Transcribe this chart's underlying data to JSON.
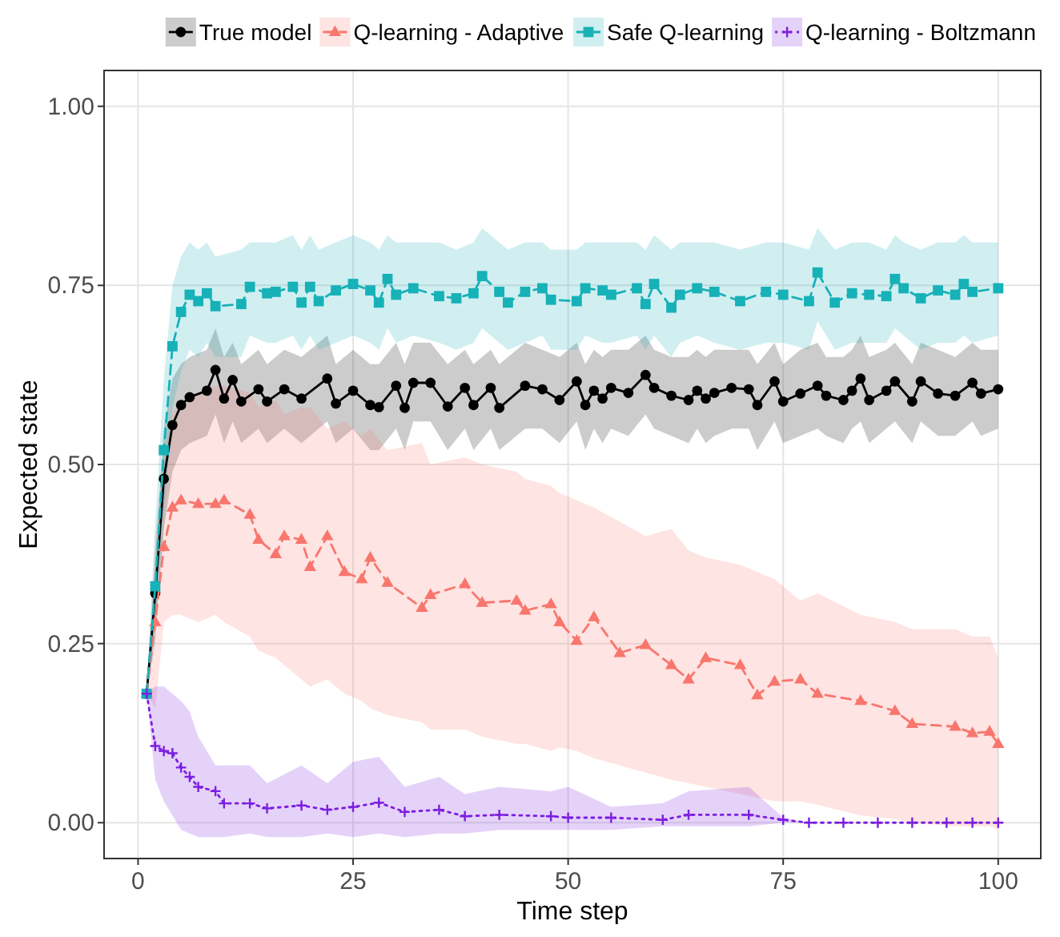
{
  "chart_data": {
    "type": "line",
    "xlabel": "Time step",
    "ylabel": "Expected state",
    "xlim": [
      -3.95,
      104.95
    ],
    "ylim": [
      -0.05,
      1.05
    ],
    "xticks": [
      0,
      25,
      50,
      75,
      100
    ],
    "yticks": [
      {
        "value": 0,
        "label": "0.00"
      },
      {
        "value": 0.25,
        "label": "0.25"
      },
      {
        "value": 0.5,
        "label": "0.50"
      },
      {
        "value": 0.75,
        "label": "0.75"
      },
      {
        "value": 1,
        "label": "1.00"
      }
    ],
    "grid": true,
    "legend": "top",
    "series": [
      {
        "name": "True model",
        "color": "#000000",
        "marker": "circle",
        "line_style": "solid",
        "x": [
          1,
          2,
          3,
          4,
          5,
          6,
          8,
          9,
          10,
          11,
          12,
          14,
          15,
          17,
          19,
          22,
          23,
          25,
          27,
          28,
          30,
          31,
          32,
          34,
          36,
          38,
          39,
          41,
          42,
          45,
          47,
          49,
          51,
          52,
          53,
          54,
          55,
          57,
          59,
          60,
          62,
          64,
          65,
          66,
          67,
          69,
          71,
          72,
          74,
          75,
          77,
          79,
          80,
          82,
          83,
          84,
          85,
          87,
          88,
          90,
          91,
          93,
          95,
          97,
          98,
          100
        ],
        "values": [
          0.18,
          0.32,
          0.48,
          0.555,
          0.583,
          0.594,
          0.603,
          0.632,
          0.592,
          0.618,
          0.588,
          0.605,
          0.588,
          0.605,
          0.592,
          0.62,
          0.585,
          0.603,
          0.583,
          0.58,
          0.61,
          0.579,
          0.614,
          0.614,
          0.581,
          0.607,
          0.583,
          0.607,
          0.579,
          0.61,
          0.605,
          0.59,
          0.616,
          0.583,
          0.603,
          0.592,
          0.607,
          0.6,
          0.625,
          0.607,
          0.596,
          0.59,
          0.603,
          0.592,
          0.6,
          0.607,
          0.605,
          0.583,
          0.616,
          0.588,
          0.599,
          0.61,
          0.596,
          0.59,
          0.603,
          0.62,
          0.59,
          0.603,
          0.616,
          0.588,
          0.616,
          0.599,
          0.596,
          0.614,
          0.599,
          0.605
        ],
        "upper": [
          0.18,
          0.37,
          0.55,
          0.62,
          0.64,
          0.65,
          0.66,
          0.69,
          0.65,
          0.67,
          0.64,
          0.66,
          0.64,
          0.66,
          0.65,
          0.68,
          0.64,
          0.66,
          0.64,
          0.64,
          0.67,
          0.64,
          0.67,
          0.67,
          0.64,
          0.66,
          0.64,
          0.66,
          0.64,
          0.67,
          0.66,
          0.65,
          0.67,
          0.64,
          0.66,
          0.65,
          0.66,
          0.66,
          0.68,
          0.66,
          0.65,
          0.65,
          0.66,
          0.65,
          0.66,
          0.66,
          0.66,
          0.64,
          0.67,
          0.64,
          0.66,
          0.67,
          0.65,
          0.65,
          0.66,
          0.68,
          0.65,
          0.66,
          0.67,
          0.64,
          0.67,
          0.66,
          0.65,
          0.67,
          0.66,
          0.66
        ],
        "lower": [
          0.18,
          0.27,
          0.41,
          0.49,
          0.52,
          0.53,
          0.54,
          0.57,
          0.53,
          0.56,
          0.53,
          0.55,
          0.53,
          0.55,
          0.53,
          0.56,
          0.53,
          0.55,
          0.52,
          0.52,
          0.55,
          0.52,
          0.56,
          0.56,
          0.52,
          0.55,
          0.52,
          0.55,
          0.52,
          0.55,
          0.55,
          0.53,
          0.56,
          0.52,
          0.55,
          0.53,
          0.55,
          0.54,
          0.57,
          0.55,
          0.54,
          0.53,
          0.55,
          0.53,
          0.54,
          0.55,
          0.55,
          0.52,
          0.56,
          0.53,
          0.54,
          0.55,
          0.54,
          0.53,
          0.55,
          0.56,
          0.53,
          0.55,
          0.56,
          0.53,
          0.56,
          0.54,
          0.54,
          0.56,
          0.54,
          0.55
        ]
      },
      {
        "name": "Q-learning - Adaptive",
        "color": "#f8766d",
        "marker": "triangle",
        "line_style": "dashed",
        "x": [
          1,
          2,
          3,
          4,
          5,
          7,
          9,
          10,
          13,
          14,
          16,
          17,
          19,
          20,
          22,
          24,
          26,
          27,
          29,
          33,
          34,
          38,
          40,
          44,
          45,
          48,
          49,
          51,
          53,
          56,
          59,
          62,
          64,
          66,
          70,
          72,
          74,
          77,
          79,
          84,
          88,
          90,
          95,
          97,
          99,
          100
        ],
        "values": [
          0.18,
          0.28,
          0.385,
          0.44,
          0.45,
          0.445,
          0.445,
          0.45,
          0.43,
          0.395,
          0.375,
          0.4,
          0.395,
          0.357,
          0.4,
          0.35,
          0.34,
          0.37,
          0.335,
          0.3,
          0.318,
          0.333,
          0.307,
          0.31,
          0.296,
          0.305,
          0.28,
          0.254,
          0.287,
          0.237,
          0.248,
          0.22,
          0.2,
          0.23,
          0.22,
          0.178,
          0.197,
          0.2,
          0.18,
          0.17,
          0.156,
          0.138,
          0.134,
          0.125,
          0.127,
          0.11
        ],
        "upper": [
          0.18,
          0.4,
          0.52,
          0.57,
          0.59,
          0.6,
          0.61,
          0.61,
          0.6,
          0.58,
          0.59,
          0.57,
          0.58,
          0.58,
          0.55,
          0.56,
          0.54,
          0.55,
          0.52,
          0.53,
          0.5,
          0.51,
          0.5,
          0.49,
          0.48,
          0.47,
          0.46,
          0.45,
          0.44,
          0.42,
          0.4,
          0.41,
          0.38,
          0.37,
          0.36,
          0.35,
          0.34,
          0.31,
          0.32,
          0.29,
          0.28,
          0.27,
          0.27,
          0.26,
          0.26,
          0.23
        ],
        "lower": [
          0.18,
          0.16,
          0.28,
          0.29,
          0.29,
          0.28,
          0.29,
          0.28,
          0.26,
          0.24,
          0.23,
          0.22,
          0.2,
          0.19,
          0.2,
          0.18,
          0.17,
          0.16,
          0.15,
          0.14,
          0.13,
          0.13,
          0.12,
          0.11,
          0.11,
          0.1,
          0.105,
          0.1,
          0.09,
          0.08,
          0.07,
          0.06,
          0.055,
          0.05,
          0.04,
          0.035,
          0.03,
          0.03,
          0.025,
          0.01,
          0.005,
          0,
          -0.005,
          -0.005,
          -0.005,
          -0.01
        ]
      },
      {
        "name": "Safe Q-learning",
        "color": "#17b1b8",
        "marker": "square",
        "line_style": "dashed",
        "x": [
          1,
          2,
          3,
          4,
          5,
          6,
          7,
          8,
          9,
          12,
          13,
          15,
          16,
          18,
          19,
          20,
          21,
          23,
          25,
          27,
          28,
          29,
          30,
          32,
          35,
          37,
          39,
          40,
          42,
          43,
          45,
          47,
          48,
          51,
          52,
          54,
          55,
          58,
          59,
          60,
          62,
          63,
          65,
          67,
          70,
          73,
          75,
          78,
          79,
          81,
          83,
          85,
          87,
          88,
          89,
          91,
          93,
          95,
          96,
          97,
          100
        ],
        "values": [
          0.18,
          0.33,
          0.52,
          0.665,
          0.713,
          0.737,
          0.728,
          0.739,
          0.721,
          0.724,
          0.748,
          0.739,
          0.741,
          0.748,
          0.726,
          0.748,
          0.728,
          0.743,
          0.752,
          0.743,
          0.726,
          0.759,
          0.737,
          0.746,
          0.735,
          0.732,
          0.739,
          0.763,
          0.741,
          0.726,
          0.741,
          0.746,
          0.73,
          0.728,
          0.746,
          0.743,
          0.737,
          0.746,
          0.724,
          0.752,
          0.719,
          0.737,
          0.746,
          0.741,
          0.728,
          0.741,
          0.737,
          0.728,
          0.768,
          0.726,
          0.739,
          0.737,
          0.735,
          0.759,
          0.746,
          0.732,
          0.743,
          0.737,
          0.752,
          0.741,
          0.746
        ],
        "upper": [
          0.18,
          0.42,
          0.62,
          0.75,
          0.79,
          0.81,
          0.8,
          0.81,
          0.79,
          0.8,
          0.81,
          0.81,
          0.81,
          0.82,
          0.8,
          0.82,
          0.8,
          0.81,
          0.82,
          0.81,
          0.8,
          0.82,
          0.81,
          0.81,
          0.81,
          0.8,
          0.81,
          0.83,
          0.81,
          0.8,
          0.81,
          0.81,
          0.8,
          0.8,
          0.81,
          0.81,
          0.81,
          0.81,
          0.8,
          0.82,
          0.8,
          0.81,
          0.81,
          0.81,
          0.8,
          0.81,
          0.81,
          0.8,
          0.83,
          0.8,
          0.81,
          0.81,
          0.8,
          0.82,
          0.81,
          0.8,
          0.81,
          0.81,
          0.82,
          0.81,
          0.81
        ],
        "lower": [
          0.18,
          0.25,
          0.42,
          0.58,
          0.63,
          0.66,
          0.65,
          0.67,
          0.65,
          0.65,
          0.68,
          0.67,
          0.67,
          0.68,
          0.66,
          0.68,
          0.66,
          0.67,
          0.68,
          0.67,
          0.66,
          0.69,
          0.67,
          0.68,
          0.67,
          0.66,
          0.67,
          0.69,
          0.67,
          0.66,
          0.67,
          0.68,
          0.66,
          0.66,
          0.68,
          0.67,
          0.67,
          0.68,
          0.66,
          0.68,
          0.65,
          0.67,
          0.68,
          0.67,
          0.66,
          0.67,
          0.67,
          0.66,
          0.7,
          0.66,
          0.67,
          0.67,
          0.67,
          0.69,
          0.68,
          0.66,
          0.67,
          0.67,
          0.68,
          0.67,
          0.68
        ]
      },
      {
        "name": "Q-learning - Boltzmann",
        "color": "#7c1fe0",
        "marker": "cross",
        "line_style": "dotted",
        "x": [
          1,
          2,
          3,
          4,
          5,
          6,
          7,
          9,
          10,
          13,
          15,
          19,
          22,
          25,
          28,
          31,
          35,
          38,
          42,
          48,
          50,
          55,
          61,
          64,
          71,
          75,
          78,
          82,
          86,
          90,
          94,
          97,
          100
        ],
        "values": [
          0.18,
          0.107,
          0.1,
          0.097,
          0.077,
          0.064,
          0.05,
          0.044,
          0.027,
          0.027,
          0.02,
          0.024,
          0.018,
          0.022,
          0.028,
          0.015,
          0.018,
          0.009,
          0.011,
          0.009,
          0.007,
          0.007,
          0.004,
          0.011,
          0.011,
          0.004,
          0,
          0,
          0,
          0,
          0,
          0,
          0
        ],
        "upper": [
          0.18,
          0.19,
          0.19,
          0.18,
          0.17,
          0.155,
          0.12,
          0.08,
          0.08,
          0.08,
          0.055,
          0.08,
          0.055,
          0.085,
          0.092,
          0.05,
          0.064,
          0.04,
          0.05,
          0.044,
          0.05,
          0.022,
          0.027,
          0.044,
          0.05,
          0.007,
          0,
          0,
          0,
          0,
          0,
          0,
          0
        ],
        "lower": [
          0.18,
          0.06,
          0.03,
          0.01,
          -0.01,
          -0.015,
          -0.02,
          -0.02,
          -0.02,
          -0.015,
          -0.02,
          -0.02,
          -0.015,
          -0.02,
          -0.015,
          -0.02,
          -0.015,
          -0.015,
          -0.01,
          -0.01,
          -0.01,
          -0.01,
          -0.005,
          -0.005,
          -0.005,
          0,
          0,
          0,
          0,
          0,
          0,
          0,
          0
        ]
      }
    ]
  }
}
